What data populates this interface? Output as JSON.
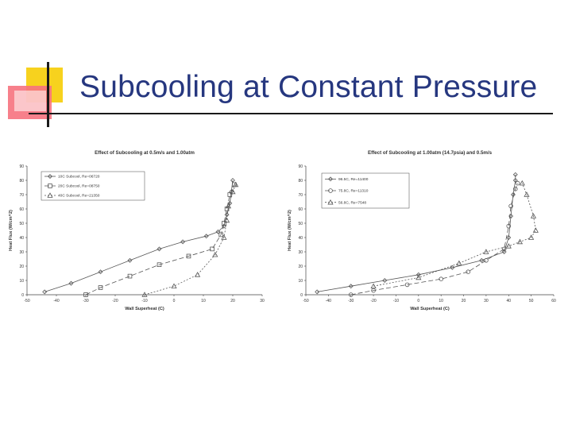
{
  "slide": {
    "title": "Subcooling at Constant Pressure"
  },
  "chart_data": [
    {
      "type": "scatter",
      "title": "Effect of Subcooling at 0.5m/s and 1.00atm",
      "xlabel": "Wall Superheat (C)",
      "ylabel": "Heat Flux (W/cm^2)",
      "xlim": [
        -50,
        30
      ],
      "ylim": [
        0,
        90
      ],
      "xticks": [
        "-50",
        "-40",
        "-30",
        "-20",
        "-10",
        "0",
        "10",
        "20",
        "30"
      ],
      "yticks": [
        "0",
        "10",
        "20",
        "30",
        "40",
        "50",
        "60",
        "70",
        "80",
        "90"
      ],
      "grid": false,
      "legend_position": "top-left",
      "colors": {
        "line": "#555555",
        "text": "#333333",
        "axis": "#444444"
      },
      "series": [
        {
          "name": "10C Subcool, Re=06720",
          "marker": "diamond",
          "dash": "",
          "points": [
            [
              -44,
              2
            ],
            [
              -35,
              8
            ],
            [
              -25,
              16
            ],
            [
              -15,
              24
            ],
            [
              -5,
              32
            ],
            [
              3,
              37
            ],
            [
              11,
              41
            ],
            [
              15,
              44
            ],
            [
              17,
              48
            ],
            [
              18,
              56
            ],
            [
              19,
              64
            ],
            [
              19.5,
              72
            ],
            [
              20,
              80
            ]
          ]
        },
        {
          "name": "20C Subcool, Re=08750",
          "marker": "square",
          "dash": "6,3",
          "points": [
            [
              -30,
              0
            ],
            [
              -25,
              5
            ],
            [
              -15,
              13
            ],
            [
              -5,
              21
            ],
            [
              5,
              27
            ],
            [
              13,
              32
            ],
            [
              16,
              42
            ],
            [
              17,
              50
            ],
            [
              18,
              60
            ],
            [
              19,
              70
            ],
            [
              20.5,
              77
            ]
          ]
        },
        {
          "name": "40C Subcool, Re=21350",
          "marker": "triangle",
          "dash": "2,2",
          "points": [
            [
              -10,
              0
            ],
            [
              0,
              6
            ],
            [
              8,
              14
            ],
            [
              14,
              28
            ],
            [
              17,
              40
            ],
            [
              18,
              52
            ],
            [
              18.5,
              62
            ],
            [
              20,
              72
            ],
            [
              21,
              77
            ]
          ]
        }
      ]
    },
    {
      "type": "scatter",
      "title": "Effect of Subcooling at 1.00atm (14.7psia) and 0.5m/s",
      "xlabel": "Wall Superheat (C)",
      "ylabel": "Heat Flux (W/cm^2)",
      "xlim": [
        -50,
        60
      ],
      "ylim": [
        0,
        90
      ],
      "xticks": [
        "-50",
        "-40",
        "-30",
        "-20",
        "-10",
        "0",
        "10",
        "20",
        "30",
        "40",
        "50",
        "60"
      ],
      "yticks": [
        "0",
        "10",
        "20",
        "30",
        "40",
        "50",
        "60",
        "70",
        "80",
        "90"
      ],
      "grid": false,
      "legend_position": "top-left",
      "colors": {
        "line": "#555555",
        "text": "#333333",
        "axis": "#444444"
      },
      "series": [
        {
          "name": "96.5C, Re=11400",
          "marker": "diamond",
          "dash": "",
          "points": [
            [
              -45,
              2
            ],
            [
              -30,
              6
            ],
            [
              -15,
              10
            ],
            [
              0,
              14
            ],
            [
              15,
              19
            ],
            [
              28,
              24
            ],
            [
              38,
              30
            ],
            [
              40,
              40
            ],
            [
              41,
              55
            ],
            [
              42,
              70
            ],
            [
              43,
              80
            ],
            [
              43,
              84
            ]
          ]
        },
        {
          "name": "75.8C, Re=11310",
          "marker": "circle",
          "dash": "6,3",
          "points": [
            [
              -30,
              0
            ],
            [
              -20,
              3
            ],
            [
              -5,
              7
            ],
            [
              10,
              11
            ],
            [
              22,
              16
            ],
            [
              30,
              24
            ],
            [
              38,
              32
            ],
            [
              40,
              48
            ],
            [
              41,
              62
            ],
            [
              43,
              74
            ],
            [
              44,
              78
            ]
          ]
        },
        {
          "name": "56.8C, Re=7548",
          "marker": "triangle",
          "dash": "2,2",
          "points": [
            [
              -20,
              6
            ],
            [
              0,
              12
            ],
            [
              18,
              22
            ],
            [
              30,
              30
            ],
            [
              40,
              34
            ],
            [
              45,
              37
            ],
            [
              50,
              40
            ],
            [
              52,
              45
            ],
            [
              51,
              55
            ],
            [
              48,
              70
            ],
            [
              46,
              78
            ]
          ]
        }
      ]
    }
  ]
}
